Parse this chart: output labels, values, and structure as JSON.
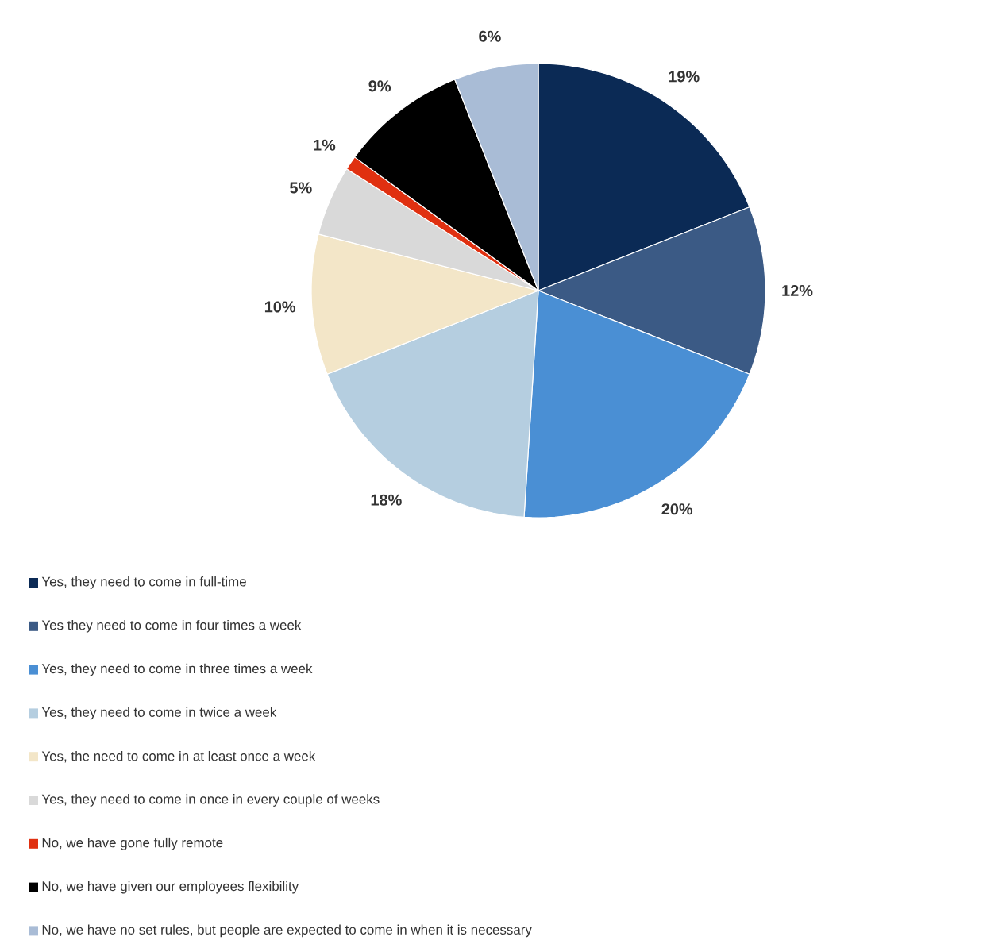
{
  "chart_data": {
    "type": "pie",
    "categories": [
      "Yes, they need to come in full-time",
      "Yes they need to come in four times a week",
      "Yes, they need to come in three times a week",
      "Yes, they need to come in twice a week",
      "Yes, the need to come in at least once a week",
      "Yes, they need to come in once in every couple of weeks",
      "No, we have gone fully remote",
      "No, we have given our employees flexibility",
      "No, we have no set rules, but people are expected to come in when it is necessary"
    ],
    "values": [
      19,
      12,
      20,
      18,
      10,
      5,
      1,
      9,
      6
    ],
    "value_labels": [
      "19%",
      "12%",
      "20%",
      "18%",
      "10%",
      "5%",
      "1%",
      "9%",
      "6%"
    ],
    "colors": [
      "#0b2a55",
      "#3b5a85",
      "#4a8fd4",
      "#b5cee0",
      "#f3e6c8",
      "#d9d9d9",
      "#e03010",
      "#000000",
      "#a9bcd6"
    ],
    "legend": "bottom"
  }
}
